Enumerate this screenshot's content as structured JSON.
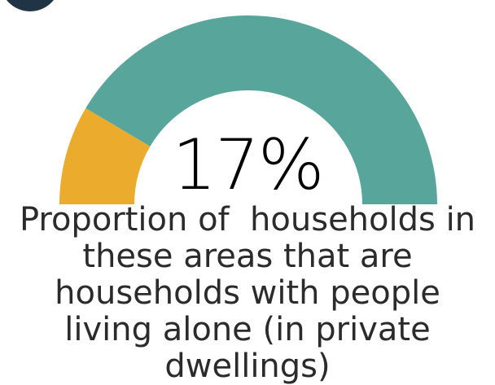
{
  "chart_data": {
    "type": "gauge",
    "value_label": "17%",
    "value": 17,
    "max": 100,
    "segments": [
      {
        "name": "",
        "value": 17,
        "color": "#EBAB2C"
      },
      {
        "name": "",
        "value": 83,
        "color": "#58A59B"
      }
    ],
    "caption_lines": [
      "Proportion of  households in",
      "these areas that are",
      "households with people",
      "living alone (in private",
      "dwellings)"
    ]
  },
  "colors": {
    "badge": "#203445"
  }
}
